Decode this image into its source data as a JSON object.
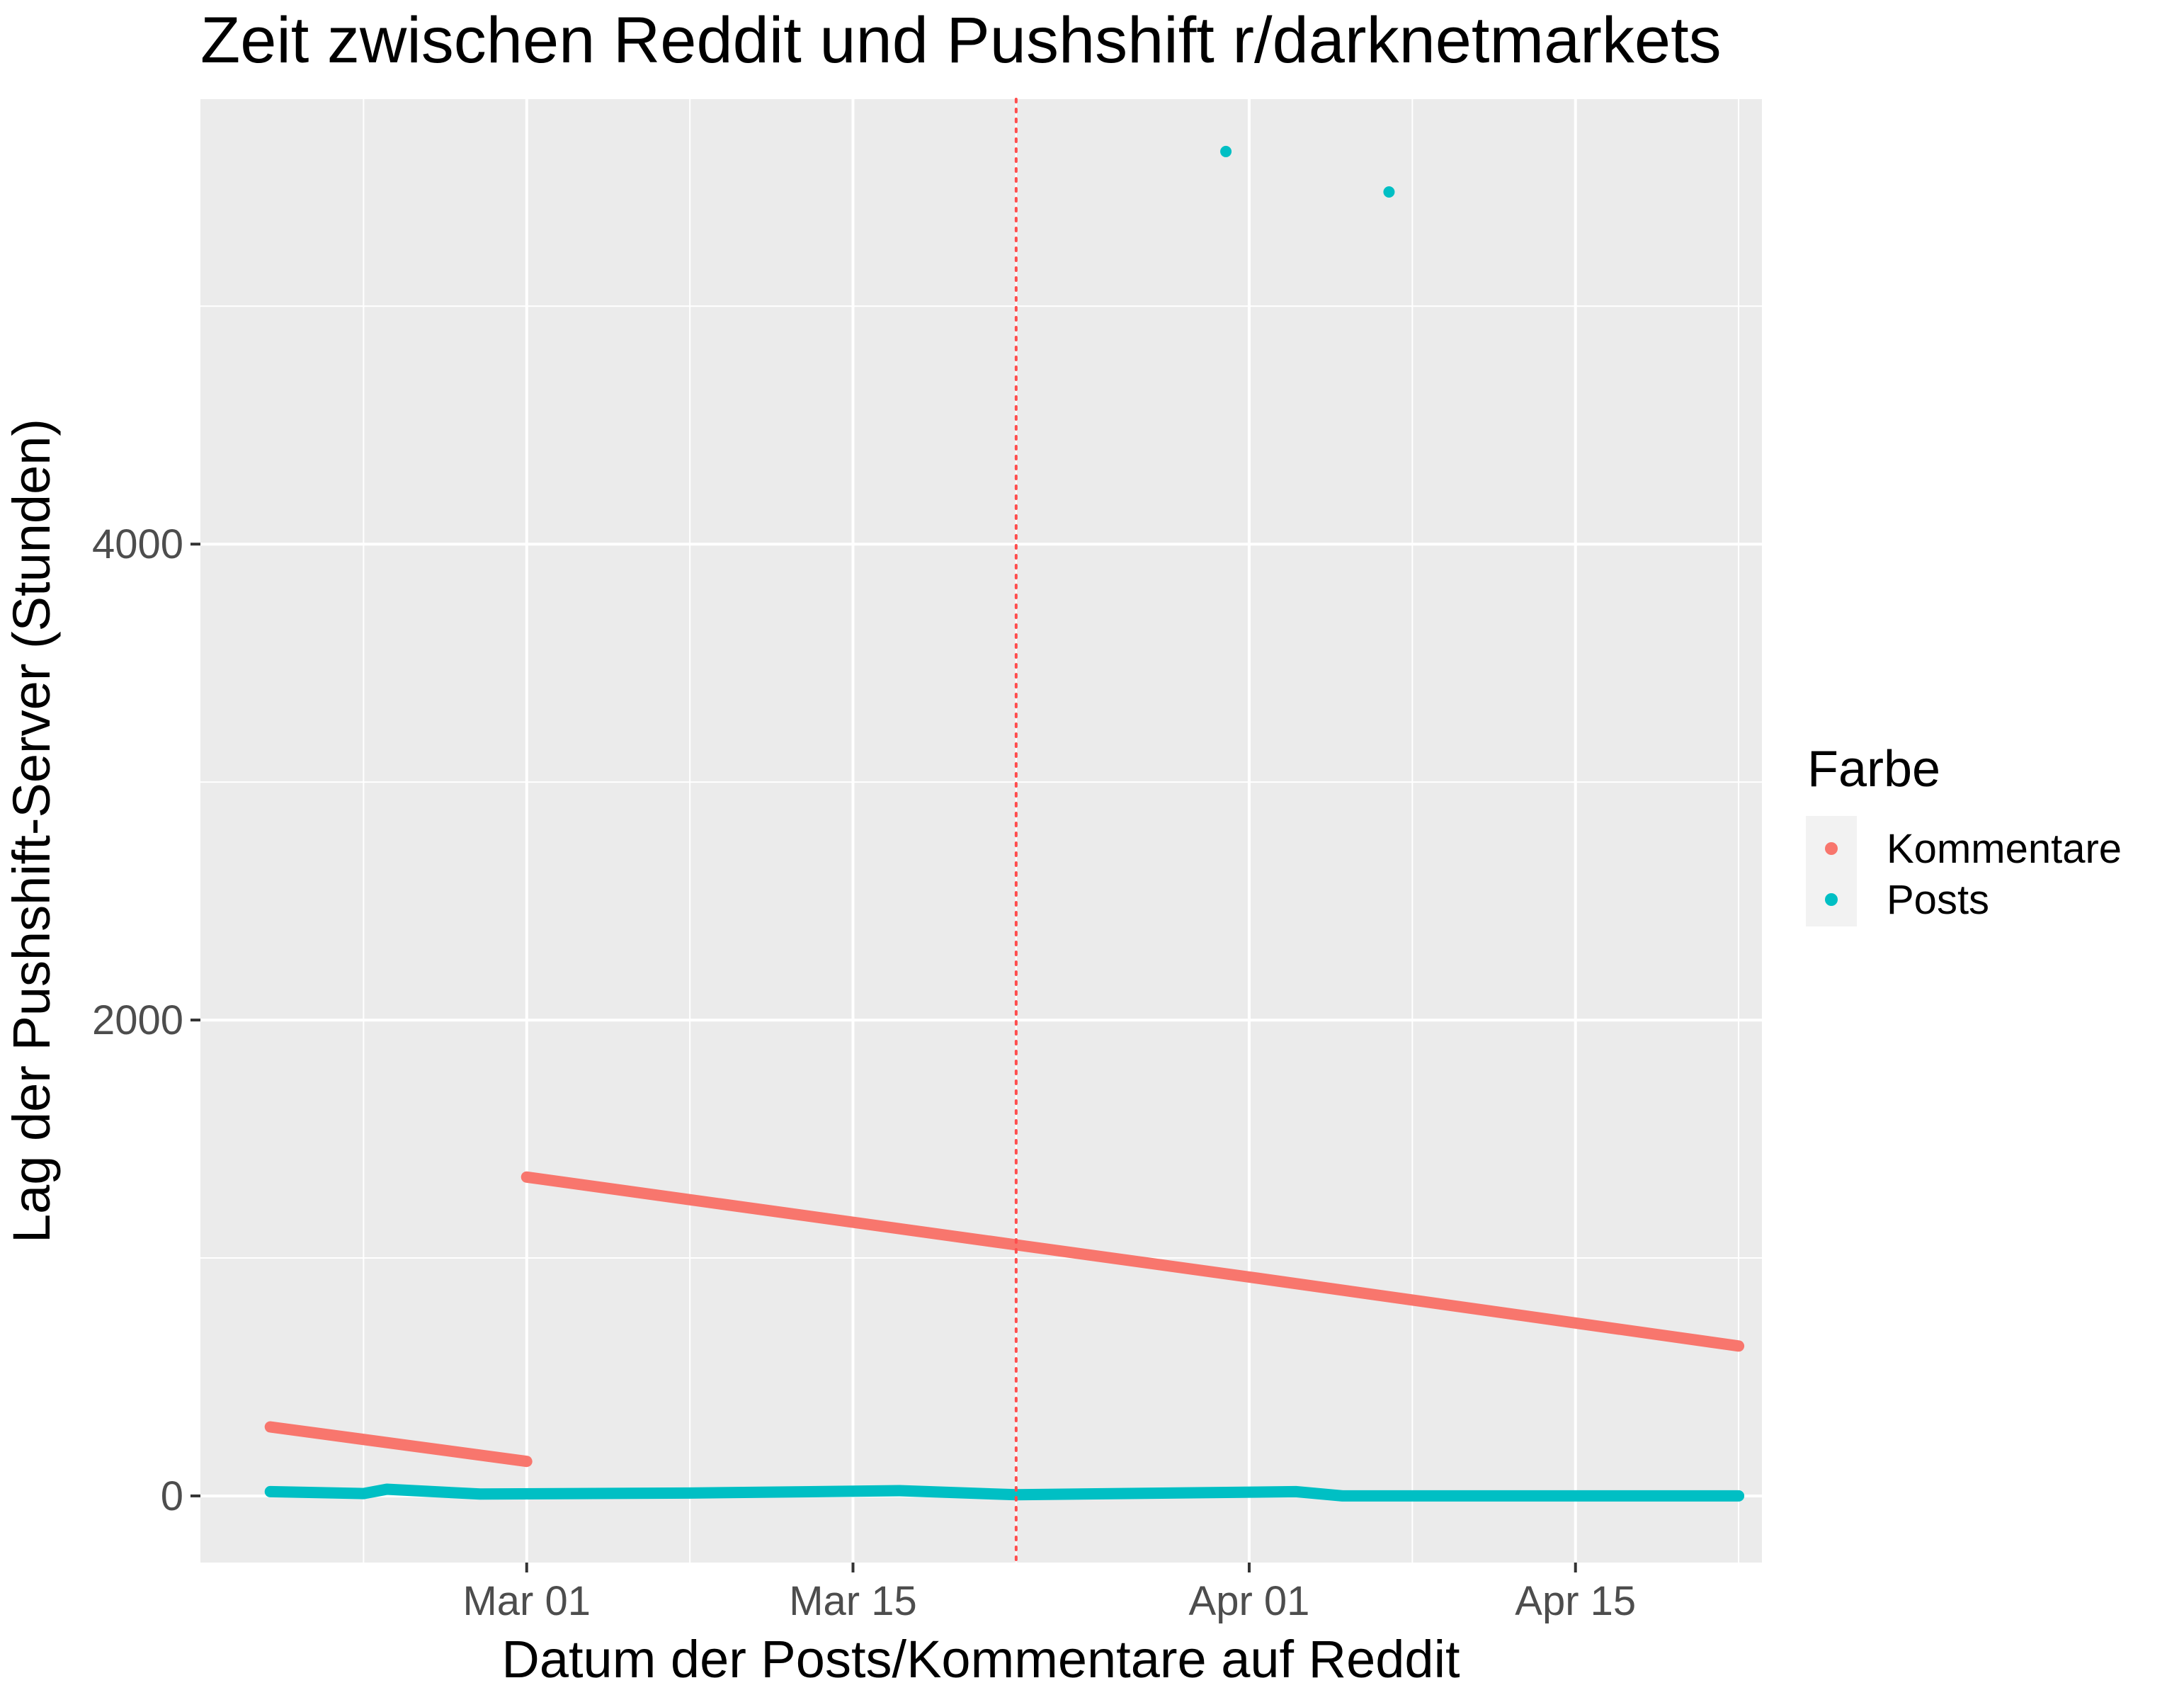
{
  "chart_data": {
    "type": "scatter",
    "title": "Zeit zwischen Reddit und Pushshift r/darknetmarkets",
    "xlabel": "Datum der Posts/Kommentare auf Reddit",
    "ylabel": "Lag der Pushshift-Server (Stunden)",
    "x_ticks": [
      {
        "value": "2019-03-01",
        "label": "Mar 01"
      },
      {
        "value": "2019-03-15",
        "label": "Mar 15"
      },
      {
        "value": "2019-04-01",
        "label": "Apr 01"
      },
      {
        "value": "2019-04-15",
        "label": "Apr 15"
      }
    ],
    "x_minor_ticks": [
      "2019-02-22",
      "2019-03-08",
      "2019-03-22",
      "2019-04-08",
      "2019-04-22"
    ],
    "y_ticks": [
      {
        "value": 0,
        "label": "0"
      },
      {
        "value": 2000,
        "label": "2000"
      },
      {
        "value": 4000,
        "label": "4000"
      }
    ],
    "y_minor_ticks": [
      1000,
      3000,
      5000
    ],
    "xlim": [
      "2019-02-15",
      "2019-04-23"
    ],
    "ylim": [
      -280,
      5870
    ],
    "grid": true,
    "panel_background": "#ebebeb",
    "grid_color": "#ffffff",
    "vline": {
      "x": "2019-03-22",
      "color": "#ff4d4d",
      "style": "dotted"
    },
    "legend": {
      "title": "Farbe",
      "position": "right",
      "items": [
        {
          "label": "Kommentare",
          "color": "#F8766D"
        },
        {
          "label": "Posts",
          "color": "#00BFC4"
        }
      ]
    },
    "series": [
      {
        "name": "Kommentare",
        "color": "#F8766D",
        "segments": [
          [
            [
              "2019-02-18",
              290
            ],
            [
              "2019-03-01",
              145
            ]
          ],
          [
            [
              "2019-03-01",
              1340
            ],
            [
              "2019-03-22",
              1055
            ],
            [
              "2019-04-01",
              920
            ],
            [
              "2019-04-22",
              630
            ]
          ]
        ]
      },
      {
        "name": "Posts",
        "color": "#00BFC4",
        "segments": [
          [
            [
              "2019-02-18",
              18
            ],
            [
              "2019-02-22",
              10
            ],
            [
              "2019-02-23",
              28
            ],
            [
              "2019-02-27",
              8
            ],
            [
              "2019-03-08",
              12
            ],
            [
              "2019-03-17",
              22
            ],
            [
              "2019-03-22",
              5
            ],
            [
              "2019-04-03",
              18
            ],
            [
              "2019-04-05",
              0
            ],
            [
              "2019-04-22",
              0
            ]
          ]
        ],
        "outliers": [
          [
            "2019-03-31",
            5650
          ],
          [
            "2019-04-07",
            5480
          ]
        ]
      }
    ]
  }
}
